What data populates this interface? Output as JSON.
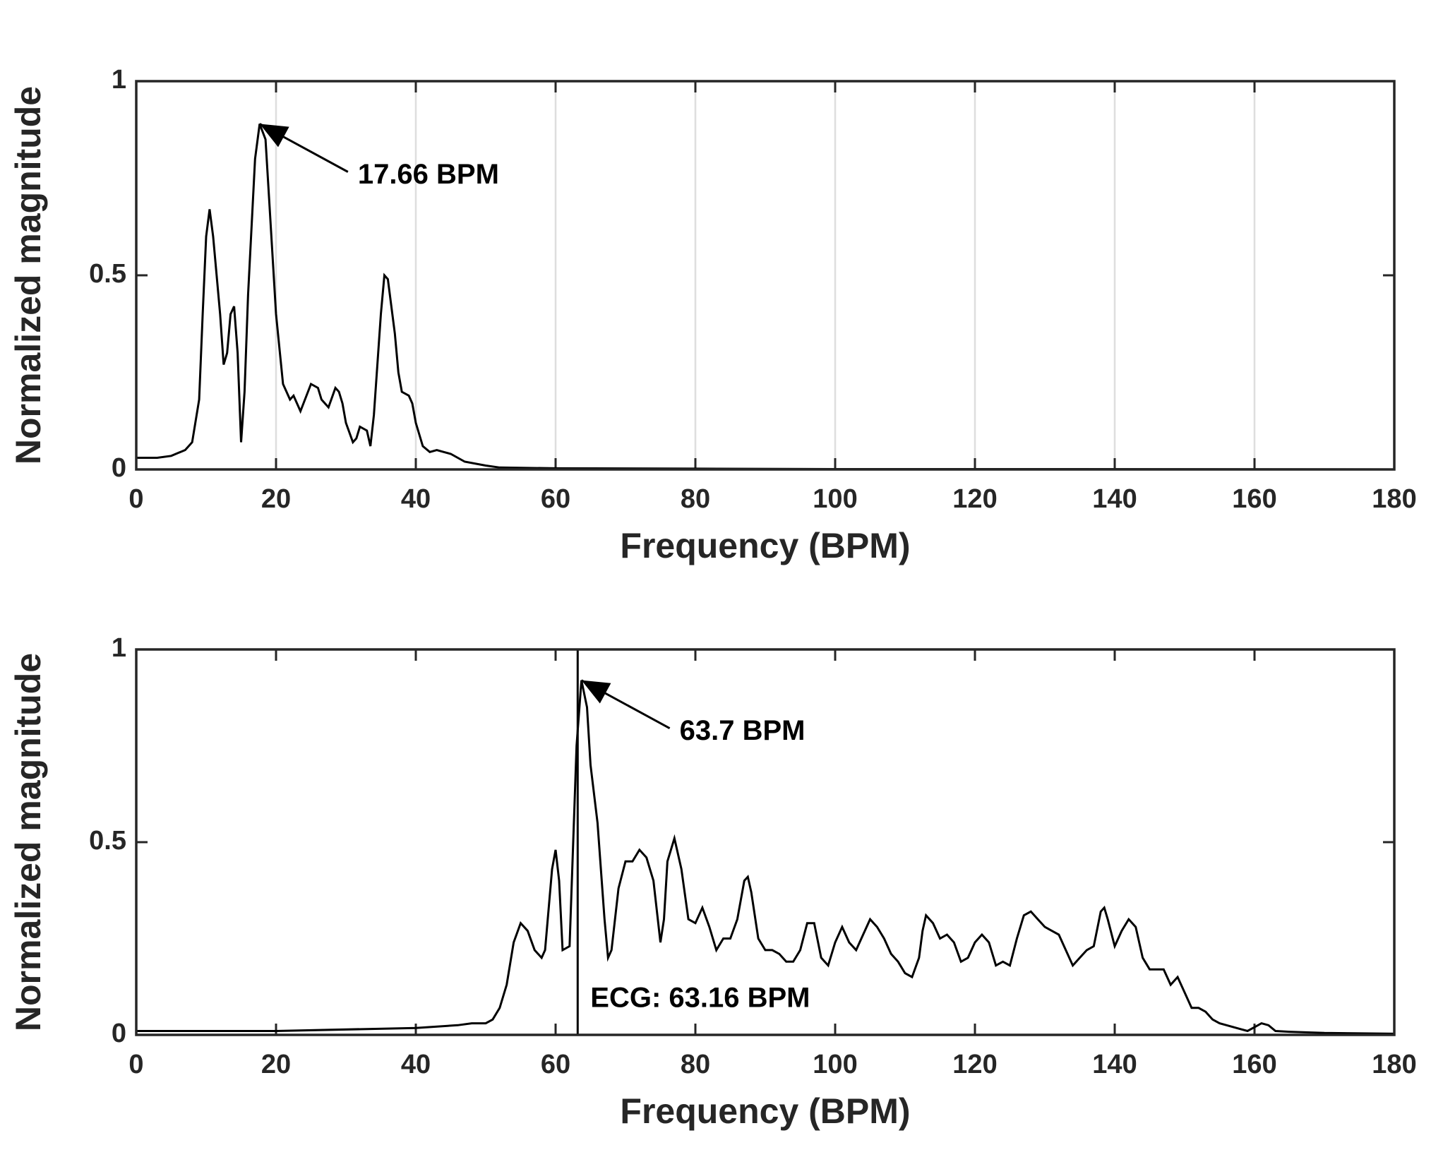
{
  "chart_data": [
    {
      "type": "line",
      "xlabel": "Frequency (BPM)",
      "ylabel": "Normalized magnitude",
      "xlim": [
        0,
        180
      ],
      "ylim": [
        0,
        1
      ],
      "xticks": [
        0,
        20,
        40,
        60,
        80,
        100,
        120,
        140,
        160,
        180
      ],
      "yticks": [
        0,
        0.5,
        1
      ],
      "xgrid": true,
      "color": "#000000",
      "x": [
        0,
        3,
        5,
        7,
        8,
        9,
        9.5,
        10,
        10.5,
        11,
        12,
        12.5,
        13,
        13.5,
        14,
        14.5,
        15,
        15.5,
        16,
        17,
        17.66,
        18.5,
        19,
        20,
        21,
        22,
        22.5,
        23.5,
        25,
        26,
        26.5,
        27.5,
        28.5,
        29,
        29.5,
        30,
        31,
        31.5,
        32,
        33,
        33.5,
        34,
        35,
        35.5,
        36,
        37,
        37.5,
        38,
        39,
        39.5,
        40,
        41,
        42,
        43,
        44,
        45,
        47,
        50,
        52,
        60,
        80,
        100,
        134,
        180
      ],
      "values": [
        0.03,
        0.03,
        0.035,
        0.05,
        0.07,
        0.18,
        0.4,
        0.6,
        0.67,
        0.6,
        0.4,
        0.27,
        0.3,
        0.4,
        0.42,
        0.3,
        0.07,
        0.2,
        0.45,
        0.8,
        0.89,
        0.85,
        0.7,
        0.4,
        0.22,
        0.18,
        0.19,
        0.15,
        0.22,
        0.21,
        0.18,
        0.16,
        0.21,
        0.2,
        0.17,
        0.12,
        0.07,
        0.08,
        0.11,
        0.1,
        0.06,
        0.14,
        0.4,
        0.5,
        0.49,
        0.35,
        0.25,
        0.2,
        0.19,
        0.17,
        0.12,
        0.06,
        0.045,
        0.05,
        0.045,
        0.04,
        0.02,
        0.01,
        0.005,
        0.003,
        0.002,
        0.001,
        0.001,
        0
      ],
      "annotations": [
        {
          "text": "17.66 BPM",
          "x": 17.66,
          "y": 0.89
        }
      ]
    },
    {
      "type": "line",
      "xlabel": "Frequency (BPM)",
      "ylabel": "Normalized magnitude",
      "xlim": [
        0,
        180
      ],
      "ylim": [
        0,
        1
      ],
      "xticks": [
        0,
        20,
        40,
        60,
        80,
        100,
        120,
        140,
        160,
        180
      ],
      "yticks": [
        0,
        0.5,
        1
      ],
      "xgrid": false,
      "color": "#000000",
      "x": [
        0,
        20,
        40,
        46,
        48,
        49,
        50,
        51,
        52,
        53,
        54,
        55,
        56,
        57,
        58,
        58.5,
        59.5,
        60,
        60.5,
        61,
        62,
        63,
        63.7,
        64.5,
        65,
        66,
        67,
        67.5,
        68,
        69,
        70,
        71,
        72,
        73,
        74,
        75,
        75.5,
        76,
        77,
        78,
        79,
        80,
        81,
        82,
        83,
        84,
        85,
        86,
        87,
        87.5,
        88,
        89,
        90,
        91,
        92,
        93,
        94,
        95,
        96,
        97,
        98,
        99,
        100,
        101,
        102,
        103,
        104,
        105,
        106,
        107,
        108,
        109,
        110,
        111,
        112,
        112.5,
        113,
        114,
        115,
        116,
        117,
        118,
        119,
        120,
        121,
        122,
        123,
        124,
        125,
        126,
        127,
        128,
        129,
        130,
        131,
        132,
        133,
        134,
        135,
        136,
        137,
        138,
        138.5,
        139,
        140,
        141,
        142,
        143,
        144,
        145,
        146,
        147,
        148,
        149,
        150,
        151,
        152,
        153,
        154,
        155,
        156,
        157,
        158,
        159,
        160,
        161,
        162,
        163,
        165,
        170,
        180
      ],
      "values": [
        0.01,
        0.01,
        0.018,
        0.025,
        0.03,
        0.03,
        0.03,
        0.04,
        0.07,
        0.13,
        0.24,
        0.29,
        0.27,
        0.22,
        0.2,
        0.22,
        0.43,
        0.48,
        0.4,
        0.22,
        0.23,
        0.75,
        0.92,
        0.85,
        0.7,
        0.55,
        0.3,
        0.2,
        0.22,
        0.38,
        0.45,
        0.45,
        0.48,
        0.46,
        0.4,
        0.24,
        0.3,
        0.45,
        0.51,
        0.43,
        0.3,
        0.29,
        0.33,
        0.28,
        0.22,
        0.25,
        0.25,
        0.3,
        0.4,
        0.41,
        0.37,
        0.25,
        0.22,
        0.22,
        0.21,
        0.19,
        0.19,
        0.22,
        0.29,
        0.29,
        0.2,
        0.18,
        0.24,
        0.28,
        0.24,
        0.22,
        0.26,
        0.3,
        0.28,
        0.25,
        0.21,
        0.19,
        0.16,
        0.15,
        0.2,
        0.27,
        0.31,
        0.29,
        0.25,
        0.26,
        0.24,
        0.19,
        0.2,
        0.24,
        0.26,
        0.24,
        0.18,
        0.19,
        0.18,
        0.25,
        0.31,
        0.32,
        0.3,
        0.28,
        0.27,
        0.26,
        0.22,
        0.18,
        0.2,
        0.22,
        0.23,
        0.32,
        0.33,
        0.3,
        0.23,
        0.27,
        0.3,
        0.28,
        0.2,
        0.17,
        0.17,
        0.17,
        0.13,
        0.15,
        0.11,
        0.07,
        0.07,
        0.06,
        0.04,
        0.03,
        0.025,
        0.02,
        0.015,
        0.01,
        0.02,
        0.03,
        0.025,
        0.01,
        0.008,
        0.005,
        0.003
      ],
      "annotations": [
        {
          "text": "63.7 BPM",
          "x": 63.7,
          "y": 0.92
        }
      ],
      "vlines": [
        {
          "x": 63.16,
          "label": "ECG: 63.16 BPM"
        }
      ]
    }
  ]
}
